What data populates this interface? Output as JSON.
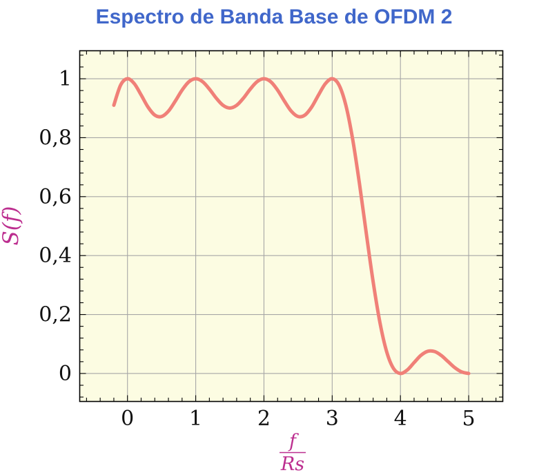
{
  "title": {
    "text": "Espectro de Banda Base de OFDM 2",
    "color": "#4067ca"
  },
  "chart_data": {
    "type": "line",
    "title": "Espectro de Banda Base de OFDM 2",
    "ylabel": "S(f)",
    "xlabel_numerator": "f",
    "xlabel_denominator": "Rs",
    "x_tick_labels": [
      "0",
      "1",
      "2",
      "3",
      "4",
      "5"
    ],
    "x_ticks": [
      0,
      1,
      2,
      3,
      4,
      5
    ],
    "y_tick_labels": [
      "0",
      "0,2",
      "0,4",
      "0,6",
      "0,8",
      "1"
    ],
    "y_ticks": [
      0,
      0.2,
      0.4,
      0.6,
      0.8,
      1
    ],
    "xlim": [
      -0.7,
      5.5
    ],
    "ylim": [
      -0.095,
      1.095
    ],
    "grid": true,
    "minor_per_major": 5,
    "legend": "none",
    "colors": {
      "curve": "#f08078",
      "plot_bg": "#fcfce2",
      "grid": "#a6a6a6",
      "axis": "#000000",
      "math_label": "#bc2e8f"
    },
    "series": [
      {
        "name": "S(f)",
        "x": [
          -0.2,
          -0.1,
          0,
          0.1,
          0.2,
          0.3,
          0.4,
          0.5,
          0.6,
          0.7,
          0.8,
          0.9,
          1,
          1.1,
          1.2,
          1.3,
          1.4,
          1.5,
          1.6,
          1.7,
          1.8,
          1.9,
          2,
          2.1,
          2.2,
          2.3,
          2.4,
          2.5,
          2.6,
          2.7,
          2.8,
          2.9,
          3,
          3.1,
          3.2,
          3.3,
          3.4,
          3.5,
          3.6,
          3.7,
          3.8,
          3.9,
          4,
          4.1,
          4.2,
          4.3,
          4.4,
          4.5,
          4.6,
          4.7,
          4.8,
          4.9,
          5
        ],
        "y": [
          0.9101,
          0.9787,
          1,
          0.9833,
          0.9451,
          0.9042,
          0.8767,
          0.8718,
          0.89,
          0.924,
          0.9614,
          0.9897,
          1,
          0.9901,
          0.965,
          0.9344,
          0.9099,
          0.9006,
          0.9099,
          0.9344,
          0.965,
          0.9901,
          1,
          0.9897,
          0.9614,
          0.924,
          0.89,
          0.8718,
          0.8767,
          0.9042,
          0.9451,
          0.9833,
          1,
          0.9787,
          0.9101,
          0.7947,
          0.6434,
          0.4748,
          0.311,
          0.1722,
          0.0724,
          0.0164,
          0,
          0.0118,
          0.0369,
          0.0615,
          0.0753,
          0.0745,
          0.0608,
          0.0399,
          0.0192,
          0.0049,
          0
        ]
      }
    ]
  }
}
